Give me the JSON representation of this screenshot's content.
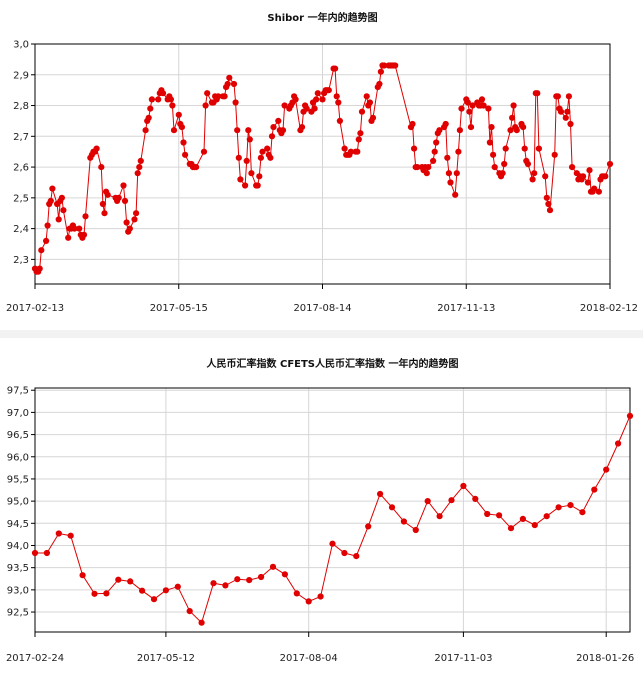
{
  "colors": {
    "series": "#e00000",
    "grid": "#d6d6d6",
    "axis": "#000000"
  },
  "chart_data": [
    {
      "type": "line",
      "title": "Shibor  一年内的趋势图",
      "xlabel": "",
      "ylabel": "",
      "ylim": [
        2.22,
        3.0
      ],
      "y_ticks": [
        2.3,
        2.4,
        2.5,
        2.6,
        2.7,
        2.8,
        2.9,
        3.0
      ],
      "y_tick_labels": [
        "2,3",
        "2,4",
        "2,5",
        "2,6",
        "2,7",
        "2,8",
        "2,9",
        "3,0"
      ],
      "x_start": "2017-02-13",
      "x_end": "2018-02-12",
      "x_ticks": [
        "2017-02-13",
        "2017-05-15",
        "2017-08-14",
        "2017-11-13",
        "2018-02-12"
      ],
      "grid": true,
      "points": [
        [
          "2017-02-13",
          2.27
        ],
        [
          "2017-02-14",
          2.26
        ],
        [
          "2017-02-15",
          2.26
        ],
        [
          "2017-02-16",
          2.27
        ],
        [
          "2017-02-17",
          2.33
        ],
        [
          "2017-02-20",
          2.36
        ],
        [
          "2017-02-21",
          2.41
        ],
        [
          "2017-02-22",
          2.48
        ],
        [
          "2017-02-23",
          2.49
        ],
        [
          "2017-02-24",
          2.53
        ],
        [
          "2017-02-27",
          2.48
        ],
        [
          "2017-02-28",
          2.43
        ],
        [
          "2017-03-01",
          2.49
        ],
        [
          "2017-03-02",
          2.5
        ],
        [
          "2017-03-03",
          2.46
        ],
        [
          "2017-03-06",
          2.37
        ],
        [
          "2017-03-07",
          2.4
        ],
        [
          "2017-03-08",
          2.4
        ],
        [
          "2017-03-09",
          2.41
        ],
        [
          "2017-03-10",
          2.4
        ],
        [
          "2017-03-13",
          2.4
        ],
        [
          "2017-03-14",
          2.38
        ],
        [
          "2017-03-15",
          2.37
        ],
        [
          "2017-03-16",
          2.38
        ],
        [
          "2017-03-17",
          2.44
        ],
        [
          "2017-03-20",
          2.63
        ],
        [
          "2017-03-21",
          2.64
        ],
        [
          "2017-03-22",
          2.65
        ],
        [
          "2017-03-23",
          2.65
        ],
        [
          "2017-03-24",
          2.66
        ],
        [
          "2017-03-27",
          2.6
        ],
        [
          "2017-03-28",
          2.48
        ],
        [
          "2017-03-29",
          2.45
        ],
        [
          "2017-03-30",
          2.52
        ],
        [
          "2017-03-31",
          2.51
        ],
        [
          "2017-04-05",
          2.5
        ],
        [
          "2017-04-06",
          2.49
        ],
        [
          "2017-04-07",
          2.5
        ],
        [
          "2017-04-10",
          2.54
        ],
        [
          "2017-04-11",
          2.49
        ],
        [
          "2017-04-12",
          2.42
        ],
        [
          "2017-04-13",
          2.39
        ],
        [
          "2017-04-14",
          2.4
        ],
        [
          "2017-04-17",
          2.43
        ],
        [
          "2017-04-18",
          2.45
        ],
        [
          "2017-04-19",
          2.58
        ],
        [
          "2017-04-20",
          2.6
        ],
        [
          "2017-04-21",
          2.62
        ],
        [
          "2017-04-24",
          2.72
        ],
        [
          "2017-04-25",
          2.75
        ],
        [
          "2017-04-26",
          2.76
        ],
        [
          "2017-04-27",
          2.79
        ],
        [
          "2017-04-28",
          2.82
        ],
        [
          "2017-05-02",
          2.82
        ],
        [
          "2017-05-03",
          2.84
        ],
        [
          "2017-05-04",
          2.85
        ],
        [
          "2017-05-05",
          2.84
        ],
        [
          "2017-05-08",
          2.82
        ],
        [
          "2017-05-09",
          2.83
        ],
        [
          "2017-05-10",
          2.82
        ],
        [
          "2017-05-11",
          2.8
        ],
        [
          "2017-05-12",
          2.72
        ],
        [
          "2017-05-15",
          2.77
        ],
        [
          "2017-05-16",
          2.74
        ],
        [
          "2017-05-17",
          2.73
        ],
        [
          "2017-05-18",
          2.68
        ],
        [
          "2017-05-19",
          2.64
        ],
        [
          "2017-05-22",
          2.61
        ],
        [
          "2017-05-23",
          2.61
        ],
        [
          "2017-05-24",
          2.6
        ],
        [
          "2017-05-25",
          2.6
        ],
        [
          "2017-05-26",
          2.6
        ],
        [
          "2017-05-31",
          2.65
        ],
        [
          "2017-06-01",
          2.8
        ],
        [
          "2017-06-02",
          2.84
        ],
        [
          "2017-06-05",
          2.81
        ],
        [
          "2017-06-06",
          2.81
        ],
        [
          "2017-06-07",
          2.83
        ],
        [
          "2017-06-08",
          2.82
        ],
        [
          "2017-06-09",
          2.83
        ],
        [
          "2017-06-12",
          2.83
        ],
        [
          "2017-06-13",
          2.83
        ],
        [
          "2017-06-14",
          2.86
        ],
        [
          "2017-06-15",
          2.87
        ],
        [
          "2017-06-16",
          2.89
        ],
        [
          "2017-06-19",
          2.87
        ],
        [
          "2017-06-20",
          2.81
        ],
        [
          "2017-06-21",
          2.72
        ],
        [
          "2017-06-22",
          2.63
        ],
        [
          "2017-06-23",
          2.56
        ],
        [
          "2017-06-26",
          2.54
        ],
        [
          "2017-06-27",
          2.62
        ],
        [
          "2017-06-28",
          2.72
        ],
        [
          "2017-06-29",
          2.69
        ],
        [
          "2017-06-30",
          2.58
        ],
        [
          "2017-07-03",
          2.54
        ],
        [
          "2017-07-04",
          2.54
        ],
        [
          "2017-07-05",
          2.57
        ],
        [
          "2017-07-06",
          2.63
        ],
        [
          "2017-07-07",
          2.65
        ],
        [
          "2017-07-10",
          2.66
        ],
        [
          "2017-07-11",
          2.64
        ],
        [
          "2017-07-12",
          2.63
        ],
        [
          "2017-07-13",
          2.7
        ],
        [
          "2017-07-14",
          2.73
        ],
        [
          "2017-07-17",
          2.75
        ],
        [
          "2017-07-18",
          2.72
        ],
        [
          "2017-07-19",
          2.71
        ],
        [
          "2017-07-20",
          2.72
        ],
        [
          "2017-07-21",
          2.8
        ],
        [
          "2017-07-24",
          2.79
        ],
        [
          "2017-07-25",
          2.8
        ],
        [
          "2017-07-26",
          2.81
        ],
        [
          "2017-07-27",
          2.83
        ],
        [
          "2017-07-28",
          2.82
        ],
        [
          "2017-07-31",
          2.72
        ],
        [
          "2017-08-01",
          2.73
        ],
        [
          "2017-08-02",
          2.78
        ],
        [
          "2017-08-03",
          2.8
        ],
        [
          "2017-08-04",
          2.79
        ],
        [
          "2017-08-07",
          2.78
        ],
        [
          "2017-08-08",
          2.81
        ],
        [
          "2017-08-09",
          2.79
        ],
        [
          "2017-08-10",
          2.82
        ],
        [
          "2017-08-11",
          2.84
        ],
        [
          "2017-08-14",
          2.82
        ],
        [
          "2017-08-15",
          2.84
        ],
        [
          "2017-08-16",
          2.85
        ],
        [
          "2017-08-17",
          2.85
        ],
        [
          "2017-08-18",
          2.85
        ],
        [
          "2017-08-21",
          2.92
        ],
        [
          "2017-08-22",
          2.92
        ],
        [
          "2017-08-23",
          2.83
        ],
        [
          "2017-08-24",
          2.81
        ],
        [
          "2017-08-25",
          2.75
        ],
        [
          "2017-08-28",
          2.66
        ],
        [
          "2017-08-29",
          2.64
        ],
        [
          "2017-08-30",
          2.64
        ],
        [
          "2017-08-31",
          2.64
        ],
        [
          "2017-09-01",
          2.65
        ],
        [
          "2017-09-04",
          2.65
        ],
        [
          "2017-09-05",
          2.65
        ],
        [
          "2017-09-06",
          2.69
        ],
        [
          "2017-09-07",
          2.71
        ],
        [
          "2017-09-08",
          2.78
        ],
        [
          "2017-09-11",
          2.83
        ],
        [
          "2017-09-12",
          2.8
        ],
        [
          "2017-09-13",
          2.81
        ],
        [
          "2017-09-14",
          2.75
        ],
        [
          "2017-09-15",
          2.76
        ],
        [
          "2017-09-18",
          2.86
        ],
        [
          "2017-09-19",
          2.87
        ],
        [
          "2017-09-20",
          2.91
        ],
        [
          "2017-09-21",
          2.93
        ],
        [
          "2017-09-22",
          2.93
        ],
        [
          "2017-09-25",
          2.93
        ],
        [
          "2017-09-26",
          2.93
        ],
        [
          "2017-09-27",
          2.93
        ],
        [
          "2017-09-28",
          2.93
        ],
        [
          "2017-09-29",
          2.93
        ],
        [
          "2017-10-09",
          2.73
        ],
        [
          "2017-10-10",
          2.74
        ],
        [
          "2017-10-11",
          2.66
        ],
        [
          "2017-10-12",
          2.6
        ],
        [
          "2017-10-13",
          2.6
        ],
        [
          "2017-10-16",
          2.6
        ],
        [
          "2017-10-17",
          2.59
        ],
        [
          "2017-10-18",
          2.6
        ],
        [
          "2017-10-19",
          2.58
        ],
        [
          "2017-10-20",
          2.6
        ],
        [
          "2017-10-23",
          2.62
        ],
        [
          "2017-10-24",
          2.65
        ],
        [
          "2017-10-25",
          2.68
        ],
        [
          "2017-10-26",
          2.71
        ],
        [
          "2017-10-27",
          2.72
        ],
        [
          "2017-10-30",
          2.73
        ],
        [
          "2017-10-31",
          2.74
        ],
        [
          "2017-11-01",
          2.63
        ],
        [
          "2017-11-02",
          2.58
        ],
        [
          "2017-11-03",
          2.55
        ],
        [
          "2017-11-06",
          2.51
        ],
        [
          "2017-11-07",
          2.58
        ],
        [
          "2017-11-08",
          2.65
        ],
        [
          "2017-11-09",
          2.72
        ],
        [
          "2017-11-10",
          2.79
        ],
        [
          "2017-11-13",
          2.82
        ],
        [
          "2017-11-14",
          2.81
        ],
        [
          "2017-11-15",
          2.78
        ],
        [
          "2017-11-16",
          2.73
        ],
        [
          "2017-11-17",
          2.8
        ],
        [
          "2017-11-20",
          2.81
        ],
        [
          "2017-11-21",
          2.8
        ],
        [
          "2017-11-22",
          2.8
        ],
        [
          "2017-11-23",
          2.82
        ],
        [
          "2017-11-24",
          2.8
        ],
        [
          "2017-11-27",
          2.79
        ],
        [
          "2017-11-28",
          2.68
        ],
        [
          "2017-11-29",
          2.73
        ],
        [
          "2017-11-30",
          2.64
        ],
        [
          "2017-12-01",
          2.6
        ],
        [
          "2017-12-04",
          2.58
        ],
        [
          "2017-12-05",
          2.57
        ],
        [
          "2017-12-06",
          2.58
        ],
        [
          "2017-12-07",
          2.61
        ],
        [
          "2017-12-08",
          2.66
        ],
        [
          "2017-12-11",
          2.72
        ],
        [
          "2017-12-12",
          2.76
        ],
        [
          "2017-12-13",
          2.8
        ],
        [
          "2017-12-14",
          2.73
        ],
        [
          "2017-12-15",
          2.72
        ],
        [
          "2017-12-18",
          2.74
        ],
        [
          "2017-12-19",
          2.73
        ],
        [
          "2017-12-20",
          2.66
        ],
        [
          "2017-12-21",
          2.62
        ],
        [
          "2017-12-22",
          2.61
        ],
        [
          "2017-12-25",
          2.56
        ],
        [
          "2017-12-26",
          2.58
        ],
        [
          "2017-12-27",
          2.84
        ],
        [
          "2017-12-28",
          2.84
        ],
        [
          "2017-12-29",
          2.66
        ],
        [
          "2018-01-02",
          2.57
        ],
        [
          "2018-01-03",
          2.5
        ],
        [
          "2018-01-04",
          2.48
        ],
        [
          "2018-01-05",
          2.46
        ],
        [
          "2018-01-08",
          2.64
        ],
        [
          "2018-01-09",
          2.83
        ],
        [
          "2018-01-10",
          2.83
        ],
        [
          "2018-01-11",
          2.79
        ],
        [
          "2018-01-12",
          2.78
        ],
        [
          "2018-01-15",
          2.76
        ],
        [
          "2018-01-16",
          2.78
        ],
        [
          "2018-01-17",
          2.83
        ],
        [
          "2018-01-18",
          2.74
        ],
        [
          "2018-01-19",
          2.6
        ],
        [
          "2018-01-22",
          2.58
        ],
        [
          "2018-01-23",
          2.56
        ],
        [
          "2018-01-24",
          2.57
        ],
        [
          "2018-01-25",
          2.56
        ],
        [
          "2018-01-26",
          2.57
        ],
        [
          "2018-01-29",
          2.55
        ],
        [
          "2018-01-30",
          2.59
        ],
        [
          "2018-01-31",
          2.52
        ],
        [
          "2018-02-01",
          2.52
        ],
        [
          "2018-02-02",
          2.53
        ],
        [
          "2018-02-05",
          2.52
        ],
        [
          "2018-02-06",
          2.56
        ],
        [
          "2018-02-07",
          2.57
        ],
        [
          "2018-02-08",
          2.57
        ],
        [
          "2018-02-09",
          2.57
        ],
        [
          "2018-02-12",
          2.61
        ]
      ]
    },
    {
      "type": "line",
      "title": "人民币汇率指数 CFETS人民币汇率指数 一年内的趋势图",
      "xlabel": "",
      "ylabel": "",
      "ylim": [
        92.05,
        97.55
      ],
      "y_ticks": [
        92.5,
        93.0,
        93.5,
        94.0,
        94.5,
        95.0,
        95.5,
        96.0,
        96.5,
        97.0,
        97.5
      ],
      "y_tick_labels": [
        "92,5",
        "93,0",
        "93,5",
        "94,0",
        "94,5",
        "95,0",
        "95,5",
        "96,0",
        "96,5",
        "97,0",
        "97,5"
      ],
      "x_start": "2017-02-24",
      "x_end": "2018-02-09",
      "x_ticks": [
        "2017-02-24",
        "2017-05-12",
        "2017-08-04",
        "2017-11-03",
        "2018-01-26"
      ],
      "grid": true,
      "points": [
        [
          "2017-02-24",
          93.83
        ],
        [
          "2017-03-03",
          93.83
        ],
        [
          "2017-03-10",
          94.27
        ],
        [
          "2017-03-17",
          94.22
        ],
        [
          "2017-03-24",
          93.33
        ],
        [
          "2017-03-31",
          92.91
        ],
        [
          "2017-04-07",
          92.92
        ],
        [
          "2017-04-14",
          93.23
        ],
        [
          "2017-04-21",
          93.19
        ],
        [
          "2017-04-28",
          92.98
        ],
        [
          "2017-05-05",
          92.79
        ],
        [
          "2017-05-12",
          92.99
        ],
        [
          "2017-05-19",
          93.07
        ],
        [
          "2017-05-26",
          92.52
        ],
        [
          "2017-06-02",
          92.26
        ],
        [
          "2017-06-09",
          93.15
        ],
        [
          "2017-06-16",
          93.1
        ],
        [
          "2017-06-23",
          93.24
        ],
        [
          "2017-06-30",
          93.22
        ],
        [
          "2017-07-07",
          93.29
        ],
        [
          "2017-07-14",
          93.52
        ],
        [
          "2017-07-21",
          93.35
        ],
        [
          "2017-07-28",
          92.92
        ],
        [
          "2017-08-04",
          92.74
        ],
        [
          "2017-08-11",
          92.85
        ],
        [
          "2017-08-18",
          94.04
        ],
        [
          "2017-08-25",
          93.83
        ],
        [
          "2017-09-01",
          93.76
        ],
        [
          "2017-09-08",
          94.43
        ],
        [
          "2017-09-15",
          95.16
        ],
        [
          "2017-09-22",
          94.86
        ],
        [
          "2017-09-29",
          94.54
        ],
        [
          "2017-10-06",
          94.35
        ],
        [
          "2017-10-13",
          95.0
        ],
        [
          "2017-10-20",
          94.66
        ],
        [
          "2017-10-27",
          95.02
        ],
        [
          "2017-11-03",
          95.34
        ],
        [
          "2017-11-10",
          95.05
        ],
        [
          "2017-11-17",
          94.71
        ],
        [
          "2017-11-24",
          94.68
        ],
        [
          "2017-12-01",
          94.39
        ],
        [
          "2017-12-08",
          94.6
        ],
        [
          "2017-12-15",
          94.46
        ],
        [
          "2017-12-22",
          94.66
        ],
        [
          "2017-12-29",
          94.86
        ],
        [
          "2018-01-05",
          94.91
        ],
        [
          "2018-01-12",
          94.75
        ],
        [
          "2018-01-19",
          95.26
        ],
        [
          "2018-01-26",
          95.71
        ],
        [
          "2018-02-02",
          96.3
        ],
        [
          "2018-02-09",
          96.92
        ]
      ]
    }
  ]
}
